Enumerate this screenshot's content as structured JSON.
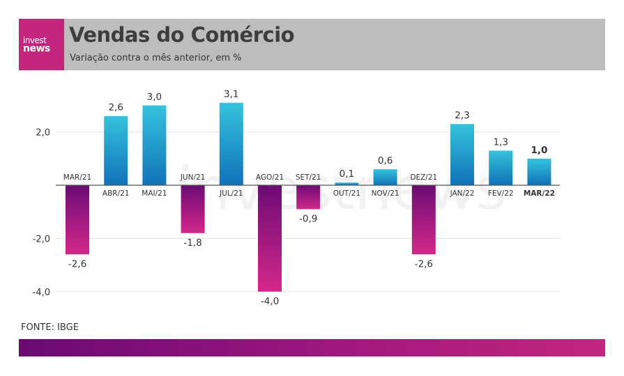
{
  "header": {
    "logo_line1": "invest",
    "logo_line2": "news",
    "title": "Vendas do Comércio",
    "subtitle": "Variação contra o mês anterior, em %"
  },
  "footer": {
    "source": "FONTE: IBGE"
  },
  "colors": {
    "positive_top": "#35c3dd",
    "positive_bottom": "#1072b8",
    "negative_top": "#6b0b74",
    "negative_bottom": "#d4288a",
    "header_bg": "#bdbdbd",
    "logo_bg": "#c4267f"
  },
  "chart_data": {
    "type": "bar",
    "categories": [
      "MAR/21",
      "ABR/21",
      "MAI/21",
      "JUN/21",
      "JUL/21",
      "AGO/21",
      "SET/21",
      "OUT/21",
      "NOV/21",
      "DEZ/21",
      "JAN/22",
      "FEV/22",
      "MAR/22"
    ],
    "values": [
      -2.6,
      2.6,
      3.0,
      -1.8,
      3.1,
      -4.0,
      -0.9,
      0.1,
      0.6,
      -2.6,
      2.3,
      1.3,
      1.0
    ],
    "value_labels": [
      "-2,6",
      "2,6",
      "3,0",
      "-1,8",
      "3,1",
      "-4,0",
      "-0,9",
      "0,1",
      "0,6",
      "-2,6",
      "2,3",
      "1,3",
      "1,0"
    ],
    "highlight_index": 12,
    "yticks": [
      2.0,
      -2.0,
      -4.0
    ],
    "ytick_labels": [
      "2,0",
      "-2,0",
      "-4,0"
    ],
    "ylim": [
      -4.0,
      3.1
    ],
    "grid": true,
    "watermark": "investnews"
  }
}
